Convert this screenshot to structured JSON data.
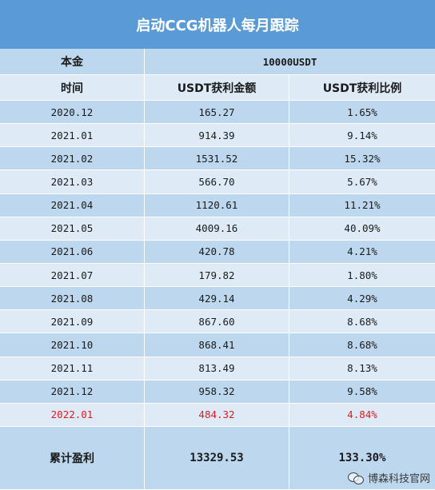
{
  "title": "启动CCG机器人每月跟踪",
  "principal": {
    "label": "本金",
    "value": "10000USDT"
  },
  "headers": {
    "time": "时间",
    "profit": "USDT获利金额",
    "ratio": "USDT获利比例"
  },
  "rows": [
    {
      "time": "2020.12",
      "profit": "165.27",
      "ratio": "1.65%"
    },
    {
      "time": "2021.01",
      "profit": "914.39",
      "ratio": "9.14%"
    },
    {
      "time": "2021.02",
      "profit": "1531.52",
      "ratio": "15.32%"
    },
    {
      "time": "2021.03",
      "profit": "566.70",
      "ratio": "5.67%"
    },
    {
      "time": "2021.04",
      "profit": "1120.61",
      "ratio": "11.21%"
    },
    {
      "time": "2021.05",
      "profit": "4009.16",
      "ratio": "40.09%"
    },
    {
      "time": "2021.06",
      "profit": "420.78",
      "ratio": "4.21%"
    },
    {
      "time": "2021.07",
      "profit": "179.82",
      "ratio": "1.80%"
    },
    {
      "time": "2021.08",
      "profit": "429.14",
      "ratio": "4.29%"
    },
    {
      "time": "2021.09",
      "profit": "867.60",
      "ratio": "8.68%"
    },
    {
      "time": "2021.10",
      "profit": "868.41",
      "ratio": "8.68%"
    },
    {
      "time": "2021.11",
      "profit": "813.49",
      "ratio": "8.13%"
    },
    {
      "time": "2021.12",
      "profit": "958.32",
      "ratio": "9.58%"
    },
    {
      "time": "2022.01",
      "profit": "484.32",
      "ratio": "4.84%",
      "highlight": true
    }
  ],
  "total": {
    "label": "累计盈利",
    "profit": "13329.53",
    "ratio": "133.30%"
  },
  "watermark": {
    "text": "博森科技官网",
    "icon": "wechat-icon"
  },
  "colors": {
    "title_bg": "#5b9bd5",
    "dark_row": "#bdd7ee",
    "light_row": "#deebf7",
    "highlight_text": "#e0191e"
  }
}
